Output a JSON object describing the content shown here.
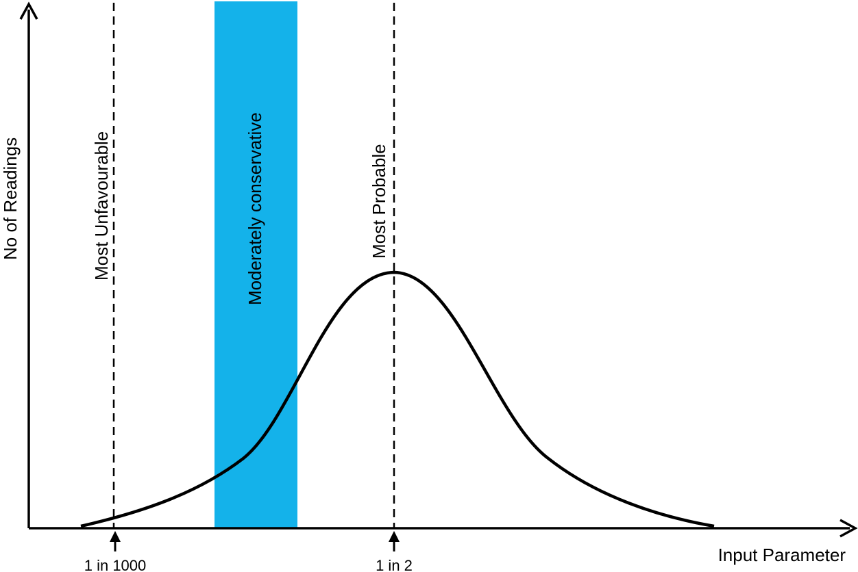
{
  "diagram": {
    "x_axis_label": "Input Parameter",
    "y_axis_label": "No of Readings",
    "markers": [
      {
        "id": "most-unfavourable",
        "label": "Most Unfavourable",
        "tick_label": "1 in 1000"
      },
      {
        "id": "most-probable",
        "label": "Most Probable",
        "tick_label": "1 in 2"
      }
    ],
    "band": {
      "label": "Moderately conservative",
      "color": "#14b2ea"
    },
    "curve": {
      "shape": "skewed bell curve",
      "color": "#000000"
    }
  }
}
